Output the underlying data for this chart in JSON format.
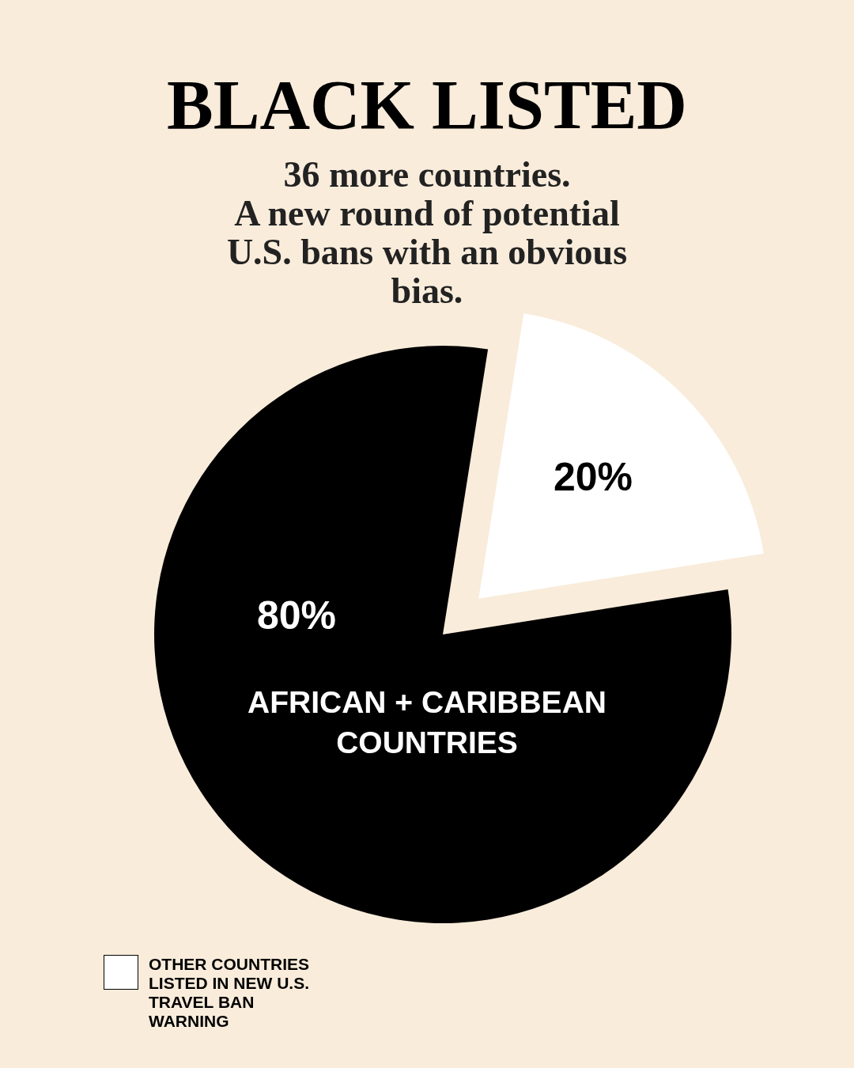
{
  "chart_data": {
    "type": "pie",
    "title": "BLACK LISTED",
    "subtitle": "36 more countries.\nA new round of potential\nU.S. bans with an obvious\nbias.",
    "categories": [
      "AFRICAN + CARIBBEAN COUNTRIES",
      "OTHER COUNTRIES LISTED IN NEW U.S. TRAVEL BAN WARNING"
    ],
    "values": [
      80,
      20
    ],
    "colors": [
      "#000000",
      "#ffffff"
    ],
    "value_labels": [
      "80%",
      "20%"
    ],
    "legend": "bottom left"
  }
}
